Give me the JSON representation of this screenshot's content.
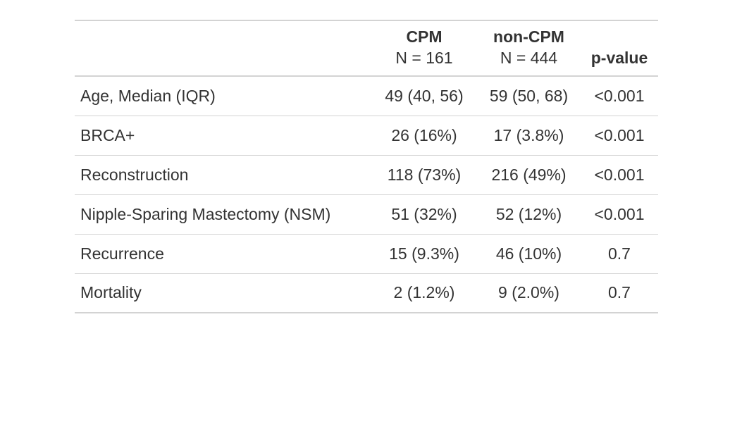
{
  "table": {
    "header": {
      "characteristic": "",
      "cpm_name": "CPM",
      "cpm_n": "N = 161",
      "noncpm_name": "non-CPM",
      "noncpm_n": "N = 444",
      "pvalue": "p-value"
    },
    "rows": [
      {
        "label": "Age, Median (IQR)",
        "cpm": "49 (40, 56)",
        "noncpm": "59 (50, 68)",
        "p": "<0.001"
      },
      {
        "label": "BRCA+",
        "cpm": "26 (16%)",
        "noncpm": "17 (3.8%)",
        "p": "<0.001"
      },
      {
        "label": "Reconstruction",
        "cpm": "118 (73%)",
        "noncpm": "216 (49%)",
        "p": "<0.001"
      },
      {
        "label": "Nipple-Sparing Mastectomy (NSM)",
        "cpm": "51 (32%)",
        "noncpm": "52 (12%)",
        "p": "<0.001"
      },
      {
        "label": "Recurrence",
        "cpm": "15 (9.3%)",
        "noncpm": "46 (10%)",
        "p": "0.7"
      },
      {
        "label": "Mortality",
        "cpm": "2 (1.2%)",
        "noncpm": "9 (2.0%)",
        "p": "0.7"
      }
    ]
  }
}
